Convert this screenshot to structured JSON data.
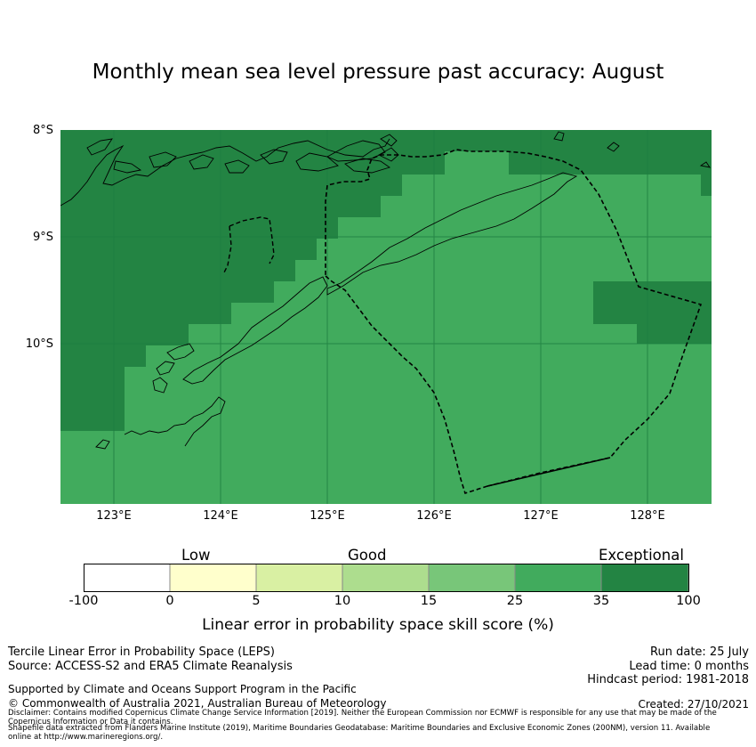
{
  "title": "Monthly mean sea level pressure past accuracy: August",
  "map": {
    "lat_labels": [
      "8°S",
      "9°S",
      "10°S"
    ],
    "lon_labels": [
      "123°E",
      "124°E",
      "125°E",
      "126°E",
      "127°E",
      "128°E"
    ],
    "extent": {
      "lon": [
        122.5,
        128.6
      ],
      "lat": [
        -11.5,
        -8.0
      ]
    },
    "colors": {
      "exceptional": "#228845",
      "good_high": "#41ab5d",
      "ocean_grid": "#1e7d40"
    }
  },
  "colorbar": {
    "category_labels": [
      "Low",
      "Good",
      "Exceptional"
    ],
    "ticks": [
      "-100",
      "0",
      "5",
      "10",
      "15",
      "25",
      "35",
      "100"
    ],
    "colors": [
      "#ffffff",
      "#ffffcc",
      "#d9f0a3",
      "#addd8e",
      "#78c679",
      "#41ab5d",
      "#238443"
    ],
    "title": "Linear error in probability space skill score (%)"
  },
  "footer": {
    "method": "Tercile Linear Error in Probability Space (LEPS)",
    "source": "Source: ACCESS-S2 and ERA5 Climate Reanalysis",
    "support": "Supported by Climate and Oceans Support Program in the Pacific",
    "copyright": "© Commonwealth of Australia 2021, Australian Bureau of Meteorology",
    "disclaimer1": "Disclaimer: Contains modified Copernicus Climate Change Service Information [2019]. Neither the European Commission nor ECMWF is responsible for any use that may be made of the Copernicus Information or Data it contains.",
    "disclaimer2": "Shapefile data extracted from Flanders Marine Institute (2019), Maritime Boundaries Geodatabase: Maritime Boundaries and Exclusive Economic Zones (200NM), version 11. Available online at http://www.marineregions.org/.",
    "run_date": "Run date: 25 July",
    "lead_time": "Lead time: 0 months",
    "hindcast": "Hindcast period: 1981-2018",
    "created": "Created: 27/10/2021"
  }
}
